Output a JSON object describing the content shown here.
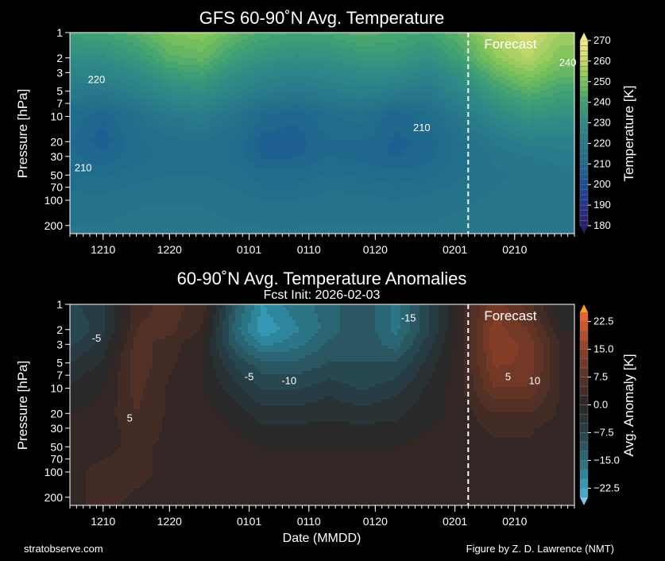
{
  "footer": {
    "left": "stratobserve.com",
    "right": "Figure by Z. D. Lawrence (NMT)"
  },
  "chart_data": [
    {
      "type": "heatmap",
      "title": "GFS 60-90˚N Avg. Temperature",
      "subtitle": "",
      "xlabel": "",
      "ylabel": "Pressure [hPa]",
      "colorbar_label": "Temperature [K]",
      "colorbar_ticks": [
        "180",
        "190",
        "200",
        "210",
        "220",
        "230",
        "240",
        "250",
        "260",
        "270"
      ],
      "colorbar_range": [
        180,
        270
      ],
      "colorbar_step": 2.5,
      "forecast_label": "Forecast",
      "forecast_start": "02-03",
      "x_tick_labels": [
        "1210",
        "1220",
        "0101",
        "0110",
        "0120",
        "0201",
        "0210"
      ],
      "y_tick_labels": [
        "1",
        "2",
        "3",
        "5",
        "7",
        "10",
        "20",
        "30",
        "50",
        "70",
        "100",
        "200"
      ],
      "ylim_hpa": [
        250,
        1
      ],
      "xlim_dates": [
        "12-05",
        "02-19"
      ],
      "contour_labels": [
        {
          "text": "220",
          "date": "12-09",
          "p": 4
        },
        {
          "text": "210",
          "date": "12-07",
          "p": 45
        },
        {
          "text": "210",
          "date": "01-27",
          "p": 15
        },
        {
          "text": "240",
          "date": "02-18",
          "p": 2.5
        }
      ],
      "x_dates": [
        "12-05",
        "12-10",
        "12-15",
        "12-20",
        "12-25",
        "12-30",
        "01-03",
        "01-08",
        "01-13",
        "01-18",
        "01-23",
        "01-28",
        "02-02",
        "02-07",
        "02-12",
        "02-17"
      ],
      "levels_hpa": [
        1,
        2,
        3,
        5,
        10,
        20,
        30,
        50,
        100,
        250
      ],
      "values": [
        [
          238,
          240,
          244,
          250,
          252,
          246,
          242,
          240,
          241,
          244,
          242,
          240,
          246,
          258,
          262,
          255
        ],
        [
          232,
          232,
          236,
          244,
          246,
          238,
          234,
          232,
          233,
          236,
          236,
          232,
          240,
          252,
          258,
          250
        ],
        [
          226,
          226,
          230,
          238,
          240,
          232,
          228,
          226,
          228,
          230,
          230,
          226,
          234,
          246,
          252,
          246
        ],
        [
          220,
          220,
          224,
          230,
          232,
          226,
          222,
          220,
          222,
          224,
          222,
          220,
          228,
          238,
          244,
          240
        ],
        [
          212,
          208,
          214,
          220,
          222,
          216,
          210,
          208,
          212,
          214,
          208,
          212,
          220,
          228,
          234,
          232
        ],
        [
          210,
          206,
          212,
          214,
          215,
          212,
          206,
          206,
          210,
          210,
          207,
          208,
          215,
          220,
          224,
          224
        ],
        [
          211,
          208,
          212,
          213,
          214,
          212,
          207,
          207,
          210,
          209,
          207,
          209,
          214,
          218,
          220,
          221
        ],
        [
          213,
          212,
          214,
          215,
          215,
          214,
          211,
          211,
          213,
          212,
          211,
          212,
          215,
          217,
          218,
          219
        ],
        [
          216,
          216,
          217,
          217,
          217,
          216,
          215,
          215,
          216,
          216,
          215,
          216,
          217,
          218,
          218,
          219
        ],
        [
          218,
          218,
          219,
          219,
          219,
          218,
          218,
          218,
          218,
          218,
          218,
          218,
          219,
          219,
          219,
          219
        ]
      ],
      "colors": [
        "#2b1b6b",
        "#27318f",
        "#1c4f96",
        "#1f6a8c",
        "#28788a",
        "#2e8a86",
        "#40a173",
        "#7cc25a",
        "#c9d96a",
        "#f6e98f"
      ]
    },
    {
      "type": "heatmap",
      "title": "60-90˚N Avg. Temperature Anomalies",
      "subtitle": "Fcst Init: 2026-02-03",
      "xlabel": "Date (MMDD)",
      "ylabel": "Pressure [hPa]",
      "colorbar_label": "Avg. Anomaly [K]",
      "colorbar_ticks": [
        "−22.5",
        "−15.0",
        "−7.5",
        "0.0",
        "7.5",
        "15.0",
        "22.5"
      ],
      "colorbar_range": [
        -25,
        25
      ],
      "colorbar_step": 2.5,
      "forecast_label": "Forecast",
      "forecast_start": "02-03",
      "x_tick_labels": [
        "1210",
        "1220",
        "0101",
        "0110",
        "0120",
        "0201",
        "0210"
      ],
      "y_tick_labels": [
        "1",
        "2",
        "3",
        "5",
        "7",
        "10",
        "20",
        "30",
        "50",
        "70",
        "100",
        "200"
      ],
      "ylim_hpa": [
        250,
        1
      ],
      "xlim_dates": [
        "12-05",
        "02-19"
      ],
      "contour_labels": [
        {
          "text": "-5",
          "date": "12-09",
          "p": 2.8
        },
        {
          "text": "5",
          "date": "12-14",
          "p": 25
        },
        {
          "text": "-5",
          "date": "01-01",
          "p": 8
        },
        {
          "text": "-10",
          "date": "01-07",
          "p": 9
        },
        {
          "text": "-15",
          "date": "01-25",
          "p": 1.6
        },
        {
          "text": "5",
          "date": "02-09",
          "p": 8
        },
        {
          "text": "10",
          "date": "02-13",
          "p": 9
        }
      ],
      "x_dates": [
        "12-05",
        "12-10",
        "12-15",
        "12-20",
        "12-25",
        "12-30",
        "01-03",
        "01-08",
        "01-13",
        "01-18",
        "01-23",
        "01-28",
        "02-02",
        "02-07",
        "02-12",
        "02-17"
      ],
      "levels_hpa": [
        1,
        2,
        3,
        5,
        10,
        20,
        30,
        50,
        100,
        250
      ],
      "values": [
        [
          -8,
          -6,
          4,
          6,
          4,
          -12,
          -20,
          -16,
          -14,
          -10,
          -16,
          -8,
          2,
          12,
          6,
          -2
        ],
        [
          -10,
          -6,
          5,
          6,
          2,
          -14,
          -22,
          -18,
          -14,
          -10,
          -16,
          -8,
          2,
          14,
          10,
          0
        ],
        [
          -8,
          -4,
          6,
          4,
          0,
          -12,
          -18,
          -16,
          -12,
          -10,
          -14,
          -6,
          2,
          14,
          12,
          2
        ],
        [
          -5,
          -2,
          7,
          3,
          0,
          -8,
          -12,
          -12,
          -10,
          -10,
          -10,
          -4,
          2,
          13,
          12,
          2
        ],
        [
          -2,
          0,
          6,
          2,
          0,
          -4,
          -8,
          -8,
          -6,
          -8,
          -6,
          -2,
          2,
          10,
          10,
          2
        ],
        [
          0,
          1,
          5,
          2,
          1,
          -1,
          -4,
          -4,
          -3,
          -4,
          -3,
          -1,
          1,
          5,
          5,
          2
        ],
        [
          1,
          1,
          4,
          2,
          1,
          0,
          -2,
          -2,
          -2,
          -2,
          -2,
          0,
          1,
          3,
          3,
          1
        ],
        [
          2,
          2,
          3,
          2,
          2,
          1,
          0,
          0,
          0,
          0,
          0,
          1,
          1,
          2,
          2,
          1
        ],
        [
          2,
          3,
          3,
          2,
          2,
          2,
          1,
          1,
          1,
          1,
          1,
          1,
          2,
          2,
          2,
          2
        ],
        [
          2,
          3,
          2,
          2,
          2,
          1,
          1,
          1,
          2,
          1,
          1,
          1,
          1,
          2,
          2,
          2
        ]
      ],
      "colors": [
        "#4cb4d4",
        "#2f8ea6",
        "#2a6c7c",
        "#284e58",
        "#27363b",
        "#2a2523",
        "#4a2e26",
        "#6a3626",
        "#8c4127",
        "#c2502a",
        "#f06a30"
      ]
    }
  ]
}
